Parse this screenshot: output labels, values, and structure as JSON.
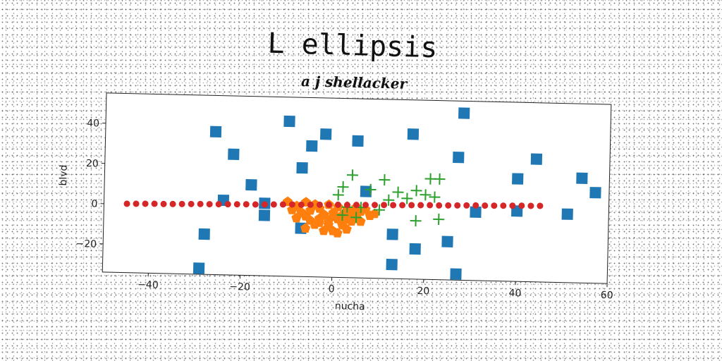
{
  "chart_data": {
    "type": "scatter",
    "title": "L ellipsis",
    "subtitle": "a j shellacker",
    "xlabel": "nucha",
    "ylabel": "blvd",
    "xlim": [
      -50,
      60
    ],
    "ylim": [
      -34,
      55
    ],
    "xticks": [
      -40,
      -20,
      0,
      20,
      40,
      60
    ],
    "yticks": [
      -20,
      0,
      20,
      40
    ],
    "grid": false,
    "series": [
      {
        "marker": "square",
        "color": "#1f77b4",
        "points": [
          [
            28,
            49
          ],
          [
            -10,
            43
          ],
          [
            17,
            38
          ],
          [
            -2,
            37
          ],
          [
            -26,
            37
          ],
          [
            5,
            34
          ],
          [
            -5,
            31
          ],
          [
            27,
            27
          ],
          [
            44,
            27
          ],
          [
            -22,
            26
          ],
          [
            -7,
            20
          ],
          [
            40,
            17
          ],
          [
            54,
            18
          ],
          [
            57,
            11
          ],
          [
            -18,
            11
          ],
          [
            7,
            9
          ],
          [
            -24,
            3
          ],
          [
            -15,
            2
          ],
          [
            31,
            0
          ],
          [
            40,
            1
          ],
          [
            51,
            0
          ],
          [
            -15,
            -4
          ],
          [
            -7,
            -10
          ],
          [
            13,
            -12
          ],
          [
            25,
            -15
          ],
          [
            -28,
            -14
          ],
          [
            18,
            -19
          ],
          [
            13,
            -27
          ],
          [
            27,
            -31
          ],
          [
            -29,
            -31
          ]
        ]
      },
      {
        "marker": "pentagon",
        "color": "#ff7f0e",
        "points": [
          [
            -10,
            3
          ],
          [
            -8,
            1
          ],
          [
            -6,
            3
          ],
          [
            -4,
            2
          ],
          [
            -3,
            0
          ],
          [
            -1,
            2
          ],
          [
            1,
            1
          ],
          [
            3,
            0
          ],
          [
            5,
            1
          ],
          [
            7,
            0
          ],
          [
            -9,
            -1
          ],
          [
            -7,
            -2
          ],
          [
            -5,
            -1
          ],
          [
            -2,
            -3
          ],
          [
            0,
            -2
          ],
          [
            2,
            -3
          ],
          [
            4,
            -2
          ],
          [
            6,
            -1
          ],
          [
            8,
            -3
          ],
          [
            9,
            -2
          ],
          [
            -8,
            -5
          ],
          [
            -6,
            -4
          ],
          [
            -3,
            -5
          ],
          [
            -1,
            -6
          ],
          [
            1,
            -5
          ],
          [
            3,
            -5
          ],
          [
            5,
            -4
          ],
          [
            -4,
            -8
          ],
          [
            -1,
            -8
          ],
          [
            2,
            -8
          ],
          [
            -6,
            -10
          ],
          [
            -2,
            -11
          ],
          [
            0,
            -11
          ],
          [
            1,
            -12
          ],
          [
            3,
            -10
          ],
          [
            -3,
            -7
          ],
          [
            4,
            -6
          ],
          [
            6,
            -6
          ],
          [
            -5,
            -6
          ],
          [
            0,
            -4
          ]
        ]
      },
      {
        "marker": "plus",
        "color": "#2ca02c",
        "points": [
          [
            4,
            17
          ],
          [
            11,
            15
          ],
          [
            21,
            16
          ],
          [
            23,
            16
          ],
          [
            2,
            11
          ],
          [
            8,
            10
          ],
          [
            14,
            9
          ],
          [
            18,
            10
          ],
          [
            20,
            8
          ],
          [
            22,
            7
          ],
          [
            16,
            6
          ],
          [
            1,
            7
          ],
          [
            12,
            5
          ],
          [
            3,
            1
          ],
          [
            6,
            1
          ],
          [
            10,
            0
          ],
          [
            2,
            -3
          ],
          [
            5,
            -4
          ],
          [
            18,
            -5
          ],
          [
            23,
            -4
          ]
        ]
      },
      {
        "marker": "circle",
        "color": "#d62728",
        "points": [
          [
            -45,
            0.2
          ],
          [
            -43,
            0.3
          ],
          [
            -41,
            0.4
          ],
          [
            -39,
            0.5
          ],
          [
            -37,
            0.5
          ],
          [
            -35,
            0.6
          ],
          [
            -33,
            0.7
          ],
          [
            -31,
            0.8
          ],
          [
            -29,
            0.9
          ],
          [
            -27,
            0.9
          ],
          [
            -25,
            1.0
          ],
          [
            -23,
            1.1
          ],
          [
            -21,
            1.2
          ],
          [
            -19,
            1.3
          ],
          [
            -17,
            1.3
          ],
          [
            -15,
            1.4
          ],
          [
            -13,
            1.5
          ],
          [
            -11,
            1.6
          ],
          [
            -9,
            1.7
          ],
          [
            -7,
            1.7
          ],
          [
            -5,
            1.8
          ],
          [
            -3,
            1.9
          ],
          [
            -1,
            2.0
          ],
          [
            1,
            2.1
          ],
          [
            3,
            2.1
          ],
          [
            5,
            2.2
          ],
          [
            7,
            2.3
          ],
          [
            9,
            2.4
          ],
          [
            11,
            2.5
          ],
          [
            13,
            2.5
          ],
          [
            15,
            2.6
          ],
          [
            17,
            2.7
          ],
          [
            19,
            2.8
          ],
          [
            21,
            2.9
          ],
          [
            23,
            2.9
          ],
          [
            25,
            3.0
          ],
          [
            27,
            3.1
          ],
          [
            29,
            3.2
          ],
          [
            31,
            3.3
          ],
          [
            33,
            3.3
          ],
          [
            35,
            3.4
          ],
          [
            37,
            3.5
          ],
          [
            39,
            3.6
          ],
          [
            41,
            3.7
          ],
          [
            43,
            3.7
          ],
          [
            45,
            3.8
          ]
        ]
      }
    ]
  }
}
